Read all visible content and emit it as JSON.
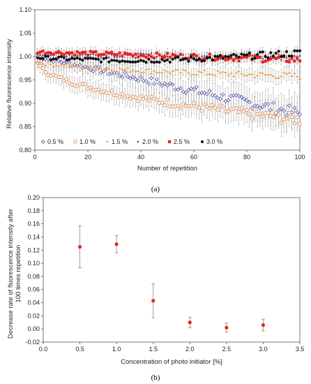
{
  "chart_data": [
    {
      "type": "scatter",
      "panel_label": "(a)",
      "xlabel": "Number of repetition",
      "ylabel": "Relative fluorescence intensity",
      "xlim": [
        0,
        100
      ],
      "ylim": [
        0.8,
        1.1
      ],
      "xticks": [
        "0",
        "20",
        "40",
        "60",
        "80",
        "100"
      ],
      "yticks": [
        "0.80",
        "0.85",
        "0.90",
        "0.95",
        "1.00",
        "1.05",
        "1.10"
      ],
      "error_bars": true,
      "legend_position": "bottom-left",
      "series": [
        {
          "name": "0.5 %",
          "marker": "diamond-open",
          "color": "#4a4aa0",
          "start": 1.0,
          "end": 0.878,
          "curve": "linear",
          "err_start": 0.01,
          "err_end": 0.035
        },
        {
          "name": "1.0 %",
          "marker": "square-open",
          "color": "#e0905a",
          "start": 0.99,
          "end": 0.865,
          "curve": "sqrt",
          "err_start": 0.015,
          "err_end": 0.03
        },
        {
          "name": "1.5 %",
          "marker": "dash",
          "color": "#f0a050",
          "start": 0.99,
          "end": 0.958,
          "curve": "sqrt",
          "err_start": 0.01,
          "err_end": 0.015
        },
        {
          "name": "2.0 %",
          "marker": "dot-small",
          "color": "#6a3a8a",
          "start": 1.005,
          "end": 0.998,
          "curve": "linear",
          "err_start": 0.008,
          "err_end": 0.01
        },
        {
          "name": "2.5 %",
          "marker": "square-filled",
          "color": "#e8241c",
          "start": 1.01,
          "end": 0.993,
          "curve": "linear",
          "err_start": 0.01,
          "err_end": 0.012
        },
        {
          "name": "3.0 %",
          "marker": "circle-filled",
          "color": "#111111",
          "start": 0.998,
          "end": 1.003,
          "curve": "bump",
          "err_start": 0.008,
          "err_end": 0.01
        }
      ]
    },
    {
      "type": "scatter",
      "panel_label": "(b)",
      "xlabel": "Concentration of photo initiator [%]",
      "ylabel_lines": [
        "Decrease rate of fluorescence intensity after",
        "100 times repetition"
      ],
      "xlim": [
        0,
        3.5
      ],
      "ylim": [
        -0.02,
        0.2
      ],
      "xticks": [
        "0.0",
        "0.5",
        "1.0",
        "1.5",
        "2.0",
        "2.5",
        "3.0",
        "3.5"
      ],
      "yticks": [
        "-0.02",
        "0.00",
        "0.02",
        "0.04",
        "0.06",
        "0.08",
        "0.10",
        "0.12",
        "0.14",
        "0.16",
        "0.18",
        "0.20"
      ],
      "marker_color": "#e8241c",
      "points": [
        {
          "x": 0.5,
          "y": 0.125,
          "err": 0.032
        },
        {
          "x": 1.0,
          "y": 0.129,
          "err": 0.013
        },
        {
          "x": 1.5,
          "y": 0.043,
          "err": 0.026
        },
        {
          "x": 2.0,
          "y": 0.01,
          "err": 0.008
        },
        {
          "x": 2.5,
          "y": 0.002,
          "err": 0.007
        },
        {
          "x": 3.0,
          "y": 0.006,
          "err": 0.009
        }
      ]
    }
  ]
}
